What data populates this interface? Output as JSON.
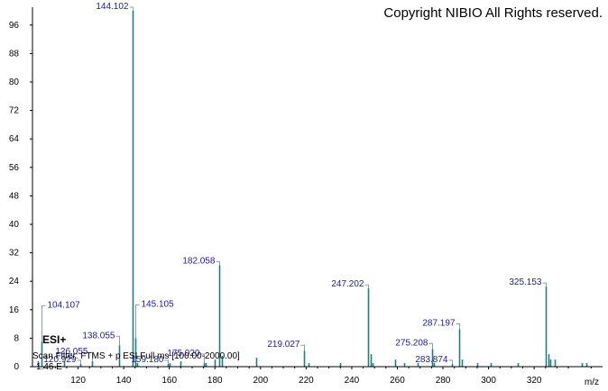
{
  "copyright": "Copyright NIBIO All Rights reserved.",
  "overlay": {
    "ion_mode": "ESI+",
    "scan_filter": "Scan Filter: FTMS + p ESI Full ms [100.00-2000.00]",
    "scale_note": "1.46 E"
  },
  "chart_data": {
    "type": "bar",
    "title": "",
    "xlabel": "m/z",
    "ylabel": "",
    "xlim": [
      100,
      350
    ],
    "ylim": [
      0,
      100
    ],
    "x_ticks": [
      120,
      140,
      160,
      180,
      200,
      220,
      240,
      260,
      280,
      300,
      320
    ],
    "y_ticks": [
      0,
      8,
      16,
      24,
      32,
      40,
      48,
      56,
      64,
      72,
      80,
      88,
      96
    ],
    "peaks": [
      {
        "mz": 102.5,
        "intensity": 1.5
      },
      {
        "mz": 104.107,
        "intensity": 7
      },
      {
        "mz": 114.0,
        "intensity": 1.5
      },
      {
        "mz": 120.929,
        "intensity": 0.8
      },
      {
        "mz": 126.055,
        "intensity": 1.5
      },
      {
        "mz": 138.055,
        "intensity": 6
      },
      {
        "mz": 144.102,
        "intensity": 100
      },
      {
        "mz": 145.105,
        "intensity": 8
      },
      {
        "mz": 146.0,
        "intensity": 1
      },
      {
        "mz": 159.18,
        "intensity": 0.8
      },
      {
        "mz": 160.0,
        "intensity": 1
      },
      {
        "mz": 165.0,
        "intensity": 1.5
      },
      {
        "mz": 175.02,
        "intensity": 1
      },
      {
        "mz": 176.0,
        "intensity": 1
      },
      {
        "mz": 180.0,
        "intensity": 2
      },
      {
        "mz": 182.058,
        "intensity": 28.5
      },
      {
        "mz": 183.0,
        "intensity": 3
      },
      {
        "mz": 198.0,
        "intensity": 2.5
      },
      {
        "mz": 219.027,
        "intensity": 4.5
      },
      {
        "mz": 221.0,
        "intensity": 1
      },
      {
        "mz": 235.0,
        "intensity": 1
      },
      {
        "mz": 247.202,
        "intensity": 22
      },
      {
        "mz": 248.2,
        "intensity": 3.5
      },
      {
        "mz": 249.0,
        "intensity": 1
      },
      {
        "mz": 259.0,
        "intensity": 2
      },
      {
        "mz": 263.0,
        "intensity": 1
      },
      {
        "mz": 269.0,
        "intensity": 1
      },
      {
        "mz": 275.208,
        "intensity": 5
      },
      {
        "mz": 276.2,
        "intensity": 1
      },
      {
        "mz": 283.874,
        "intensity": 0.8
      },
      {
        "mz": 287.197,
        "intensity": 10.5
      },
      {
        "mz": 288.2,
        "intensity": 2
      },
      {
        "mz": 295.0,
        "intensity": 1
      },
      {
        "mz": 301.0,
        "intensity": 1
      },
      {
        "mz": 313.0,
        "intensity": 1
      },
      {
        "mz": 325.153,
        "intensity": 22.5
      },
      {
        "mz": 326.2,
        "intensity": 3.5
      },
      {
        "mz": 327.0,
        "intensity": 2
      },
      {
        "mz": 329.0,
        "intensity": 2
      },
      {
        "mz": 341.0,
        "intensity": 1
      },
      {
        "mz": 343.0,
        "intensity": 1
      }
    ],
    "labels": [
      {
        "mz": 144.102,
        "text": "144.102",
        "side": "left",
        "lift": 4
      },
      {
        "mz": 182.058,
        "text": "182.058",
        "side": "left",
        "lift": 4
      },
      {
        "mz": 247.202,
        "text": "247.202",
        "side": "left",
        "lift": 4
      },
      {
        "mz": 325.153,
        "text": "325.153",
        "side": "left",
        "lift": 4
      },
      {
        "mz": 287.197,
        "text": "287.197",
        "side": "left",
        "lift": 6
      },
      {
        "mz": 275.208,
        "text": "275.208",
        "side": "left",
        "lift": 6
      },
      {
        "mz": 219.027,
        "text": "219.027",
        "side": "left",
        "lift": 6
      },
      {
        "mz": 145.105,
        "text": "145.105",
        "side": "right",
        "lift": 37
      },
      {
        "mz": 104.107,
        "text": "104.107",
        "side": "right",
        "lift": 40
      },
      {
        "mz": 138.055,
        "text": "138.055",
        "side": "left",
        "lift": 10
      },
      {
        "mz": 126.055,
        "text": "126.055",
        "side": "left",
        "lift": 10
      },
      {
        "mz": 175.02,
        "text": "175.020",
        "side": "left",
        "lift": 10
      },
      {
        "mz": 159.18,
        "text": "159.180",
        "side": "left",
        "lift": 4
      },
      {
        "mz": 283.874,
        "text": "283.874",
        "side": "left",
        "lift": 4
      },
      {
        "mz": 120.929,
        "text": "120.929",
        "side": "left",
        "lift": 4
      }
    ],
    "grid": false,
    "colors": {
      "peaks": "#1e7f7f",
      "labels": "#1a1aa0",
      "bracket": "#8a9ab8",
      "axis": "#000000"
    }
  }
}
